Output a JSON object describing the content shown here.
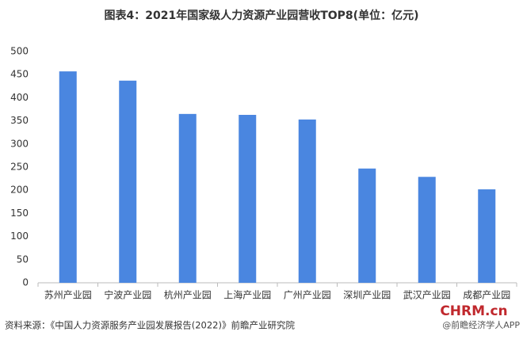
{
  "chart_data": {
    "type": "bar",
    "title": "图表4：2021年国家级人力资源产业园营收TOP8(单位：亿元)",
    "categories": [
      "苏州产业园",
      "宁波产业园",
      "杭州产业园",
      "上海产业园",
      "广州产业园",
      "深圳产业园",
      "武汉产业园",
      "成都产业园"
    ],
    "values": [
      457,
      437,
      365,
      363,
      353,
      247,
      229,
      202
    ],
    "color": "#4a86e0",
    "ylim": [
      0,
      500
    ],
    "yticks": [
      0,
      50,
      100,
      150,
      200,
      250,
      300,
      350,
      400,
      450,
      500
    ],
    "grid": false,
    "source": "资料来源：《中国人力资源服务产业园发展报告(2022)》前瞻产业研究院",
    "logo": "CHRM.cn",
    "credit": "@前瞻经济学人APP"
  }
}
